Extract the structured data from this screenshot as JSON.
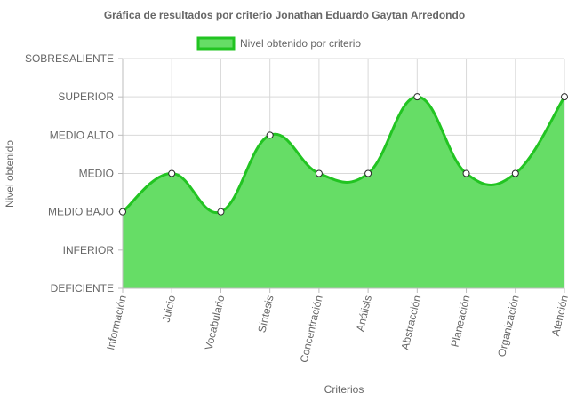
{
  "chart_data": {
    "type": "area",
    "title": "Gráfica de resultados por criterio Jonathan Eduardo Gaytan Arredondo",
    "xlabel": "Criterios",
    "ylabel": "Nivel obtenido",
    "y_levels": [
      "DEFICIENTE",
      "INFERIOR",
      "MEDIO BAJO",
      "MEDIO",
      "MEDIO ALTO",
      "SUPERIOR",
      "SOBRESALIENTE"
    ],
    "ylim": [
      0,
      6
    ],
    "categories": [
      "Información",
      "Juicio",
      "Vocabulario",
      "Síntesis",
      "Concentración",
      "Análisis",
      "Abstracción",
      "Planeación",
      "Organización",
      "Atención"
    ],
    "series": [
      {
        "name": "Nivel obtenido por criterio",
        "values": [
          2,
          3,
          2,
          4,
          3,
          3,
          5,
          3,
          3,
          5
        ],
        "fill_color": "#66dd66",
        "line_color": "#22c422"
      }
    ],
    "legend_position": "top",
    "grid": true
  }
}
